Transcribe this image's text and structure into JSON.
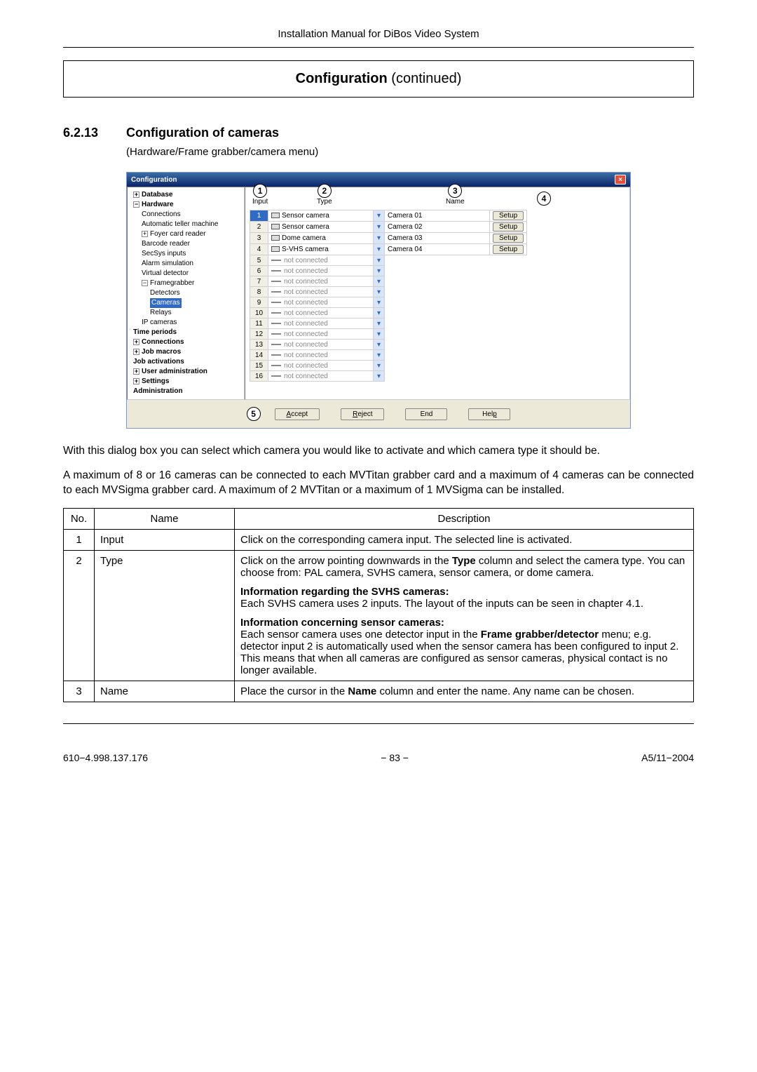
{
  "header": "Installation Manual for DiBos Video System",
  "section_box": {
    "bold": "Configuration",
    "rest": "  (continued)"
  },
  "subsection": {
    "number": "6.2.13",
    "title": "Configuration of cameras",
    "caption": "(Hardware/Frame grabber/camera menu)"
  },
  "screenshot": {
    "window_title": "Configuration",
    "tree": [
      {
        "lvl": 0,
        "exp": "+",
        "label": "Database"
      },
      {
        "lvl": 0,
        "exp": "−",
        "label": "Hardware"
      },
      {
        "lvl": 1,
        "label": "Connections"
      },
      {
        "lvl": 1,
        "label": "Automatic teller machine"
      },
      {
        "lvl": 1,
        "exp": "+",
        "label": "Foyer card reader"
      },
      {
        "lvl": 1,
        "label": "Barcode reader"
      },
      {
        "lvl": 1,
        "label": "SecSys inputs"
      },
      {
        "lvl": 1,
        "label": "Alarm simulation"
      },
      {
        "lvl": 1,
        "label": "Virtual detector"
      },
      {
        "lvl": 1,
        "exp": "−",
        "label": "Framegrabber"
      },
      {
        "lvl": 2,
        "label": "Detectors"
      },
      {
        "lvl": 2,
        "label": "Cameras",
        "selected": true
      },
      {
        "lvl": 2,
        "label": "Relays"
      },
      {
        "lvl": 1,
        "label": "IP cameras"
      },
      {
        "lvl": 0,
        "label": "Time periods",
        "bold": true
      },
      {
        "lvl": 0,
        "exp": "+",
        "label": "Connections",
        "bold": true
      },
      {
        "lvl": 0,
        "exp": "+",
        "label": "Job macros",
        "bold": true
      },
      {
        "lvl": 0,
        "label": "Job activations",
        "bold": true
      },
      {
        "lvl": 0,
        "exp": "+",
        "label": "User administration",
        "bold": true
      },
      {
        "lvl": 0,
        "exp": "+",
        "label": "Settings",
        "bold": true
      },
      {
        "lvl": 0,
        "label": "Administration",
        "bold": true
      }
    ],
    "col_markers": [
      "1",
      "2",
      "3",
      "4"
    ],
    "col_labels": [
      "Input",
      "Type",
      "Name",
      ""
    ],
    "rows": [
      {
        "input": "1",
        "type": "Sensor camera",
        "icon": "cam",
        "name": "Camera 01",
        "setup": true,
        "sel": true
      },
      {
        "input": "2",
        "type": "Sensor camera",
        "icon": "cam",
        "name": "Camera 02",
        "setup": true
      },
      {
        "input": "3",
        "type": "Dome camera",
        "icon": "dome",
        "name": "Camera 03",
        "setup": true
      },
      {
        "input": "4",
        "type": "S-VHS camera",
        "icon": "svhs",
        "name": "Camera 04",
        "setup": true
      },
      {
        "input": "5",
        "type": "not connected",
        "icon": "nc"
      },
      {
        "input": "6",
        "type": "not connected",
        "icon": "nc"
      },
      {
        "input": "7",
        "type": "not connected",
        "icon": "nc"
      },
      {
        "input": "8",
        "type": "not connected",
        "icon": "nc"
      },
      {
        "input": "9",
        "type": "not connected",
        "icon": "nc"
      },
      {
        "input": "10",
        "type": "not connected",
        "icon": "nc"
      },
      {
        "input": "11",
        "type": "not connected",
        "icon": "nc"
      },
      {
        "input": "12",
        "type": "not connected",
        "icon": "nc"
      },
      {
        "input": "13",
        "type": "not connected",
        "icon": "nc"
      },
      {
        "input": "14",
        "type": "not connected",
        "icon": "nc"
      },
      {
        "input": "15",
        "type": "not connected",
        "icon": "nc"
      },
      {
        "input": "16",
        "type": "not connected",
        "icon": "nc"
      }
    ],
    "marker5": "5",
    "buttons": [
      "Accept",
      "Reject",
      "End",
      "Help"
    ],
    "setup_label": "Setup"
  },
  "body_paras": [
    "With this dialog box you can select which camera you would like to activate and which camera type it should be.",
    "A maximum of 8 or 16 cameras can be connected to each MVTitan grabber card and a maximum of 4 cameras can be connected to each MVSigma grabber card. A maximum of 2 MVTitan or a maximum of 1 MVSigma can be installed."
  ],
  "table": {
    "head": [
      "No.",
      "Name",
      "Description"
    ],
    "rows": [
      {
        "no": "1",
        "name": "Input",
        "desc_html": "Click on the corresponding camera input. The selected line is activated."
      },
      {
        "no": "2",
        "name": "Type",
        "desc_html": "<div class='para'>Click on the arrow pointing downwards in the <b>Type</b> column and select the camera type. You can choose from: PAL camera, SVHS camera, sensor camera, or dome camera.</div><div class='para'><b>Information regarding the SVHS cameras:</b><br>Each SVHS camera uses 2 inputs. The layout of the inputs can be seen in chapter 4.1.</div><div class='para'><b>Information concerning sensor cameras:</b><br>Each sensor camera uses one detector input in the <b>Frame grabber/detector</b> menu; e.g. detector input 2 is automatically used when the sensor camera has been configured to input 2.  This means that when all cameras are configured as sensor cameras, physical contact is no longer available.</div>"
      },
      {
        "no": "3",
        "name": "Name",
        "desc_html": "Place the cursor in the <b>Name</b> column and enter the name. Any name can be chosen."
      }
    ]
  },
  "footer": {
    "left": "610−4.998.137.176",
    "center": "−  83  −",
    "right": "A5/11−2004"
  },
  "colors": {
    "title_gradient_top": "#3a6ea5",
    "title_gradient_bottom": "#0a246a",
    "selection": "#316ac5",
    "panel_bg": "#ece9d8",
    "close_btn": "#e34f3a",
    "dropdown_bg": "#d8e4f8"
  }
}
